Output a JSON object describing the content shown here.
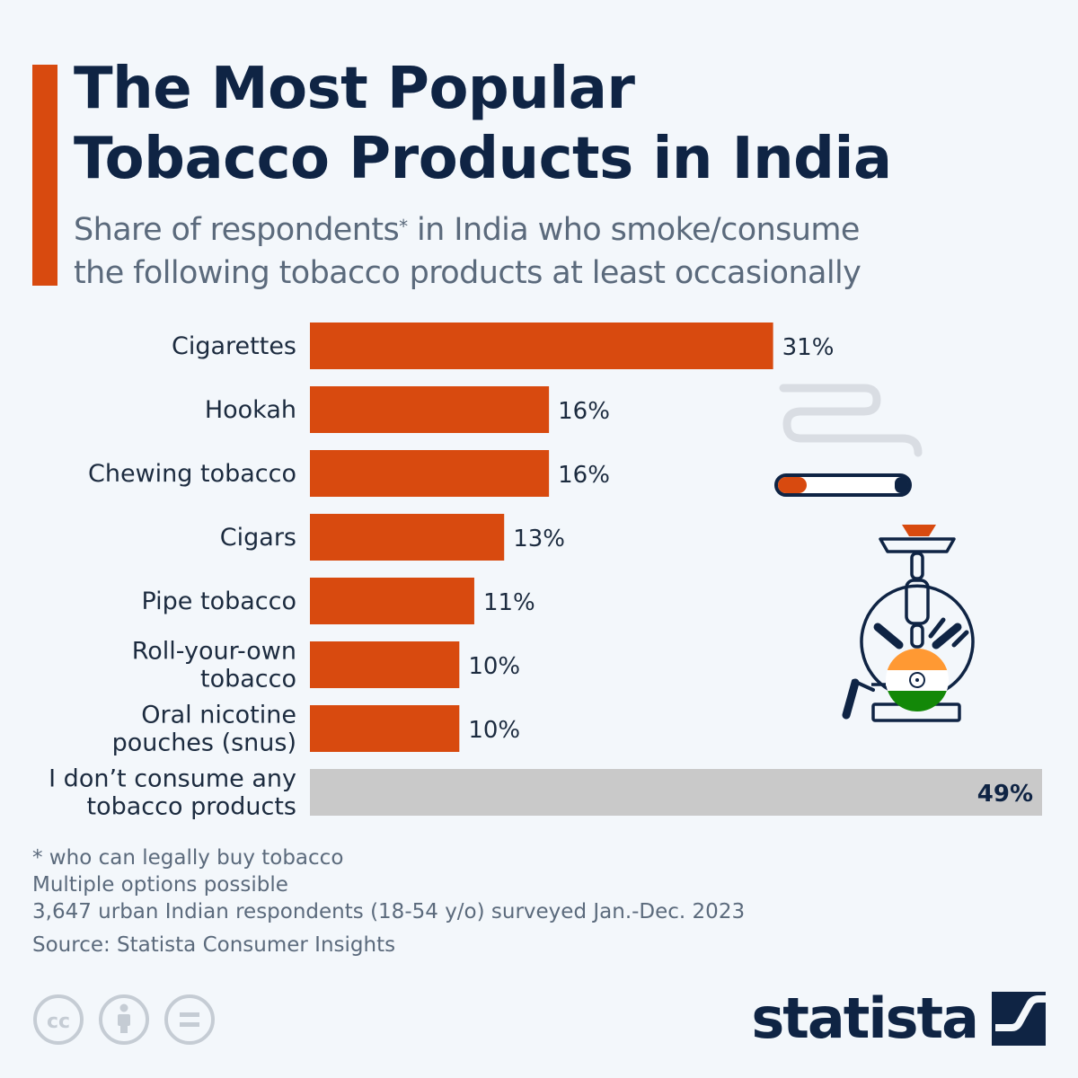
{
  "header": {
    "title_line1": "The Most Popular",
    "title_line2": "Tobacco Products in India",
    "subtitle_part1": "Share of respondents",
    "subtitle_asterisk": "*",
    "subtitle_part2": " in India who smoke/consume",
    "subtitle_line2": "the following tobacco products at least occasionally"
  },
  "chart_data": {
    "type": "bar",
    "orientation": "horizontal",
    "title": "The Most Popular Tobacco Products in India",
    "xlabel": "",
    "ylabel": "",
    "xlim": [
      0,
      49
    ],
    "unit": "%",
    "categories": [
      [
        "Cigarettes"
      ],
      [
        "Hookah"
      ],
      [
        "Chewing tobacco"
      ],
      [
        "Cigars"
      ],
      [
        "Pipe tobacco"
      ],
      [
        "Roll-your-own",
        "tobacco"
      ],
      [
        "Oral nicotine",
        "pouches (snus)"
      ],
      [
        "I don’t consume any",
        "tobacco products"
      ]
    ],
    "values": [
      31,
      16,
      16,
      13,
      11,
      10,
      10,
      49
    ],
    "value_labels": [
      "31%",
      "16%",
      "16%",
      "13%",
      "11%",
      "10%",
      "10%",
      "49%"
    ],
    "bar_colors": [
      "#d84a0f",
      "#d84a0f",
      "#d84a0f",
      "#d84a0f",
      "#d84a0f",
      "#d84a0f",
      "#d84a0f",
      "#c9c9c9"
    ]
  },
  "notes": {
    "note1": "* who can legally buy tobacco",
    "note2": "Multiple options possible",
    "note3": "3,647 urban Indian respondents (18-54 y/o) surveyed Jan.-Dec. 2023",
    "source": "Source: Statista Consumer Insights"
  },
  "branding": {
    "logo_text": "statista",
    "license_icons": [
      "cc-icon",
      "attribution-icon",
      "no-derivatives-icon"
    ]
  },
  "colors": {
    "accent": "#d84a0f",
    "title": "#0f2444",
    "muted": "#5b6a7c",
    "gray_bar": "#c9c9c9",
    "background": "#f3f7fb"
  }
}
